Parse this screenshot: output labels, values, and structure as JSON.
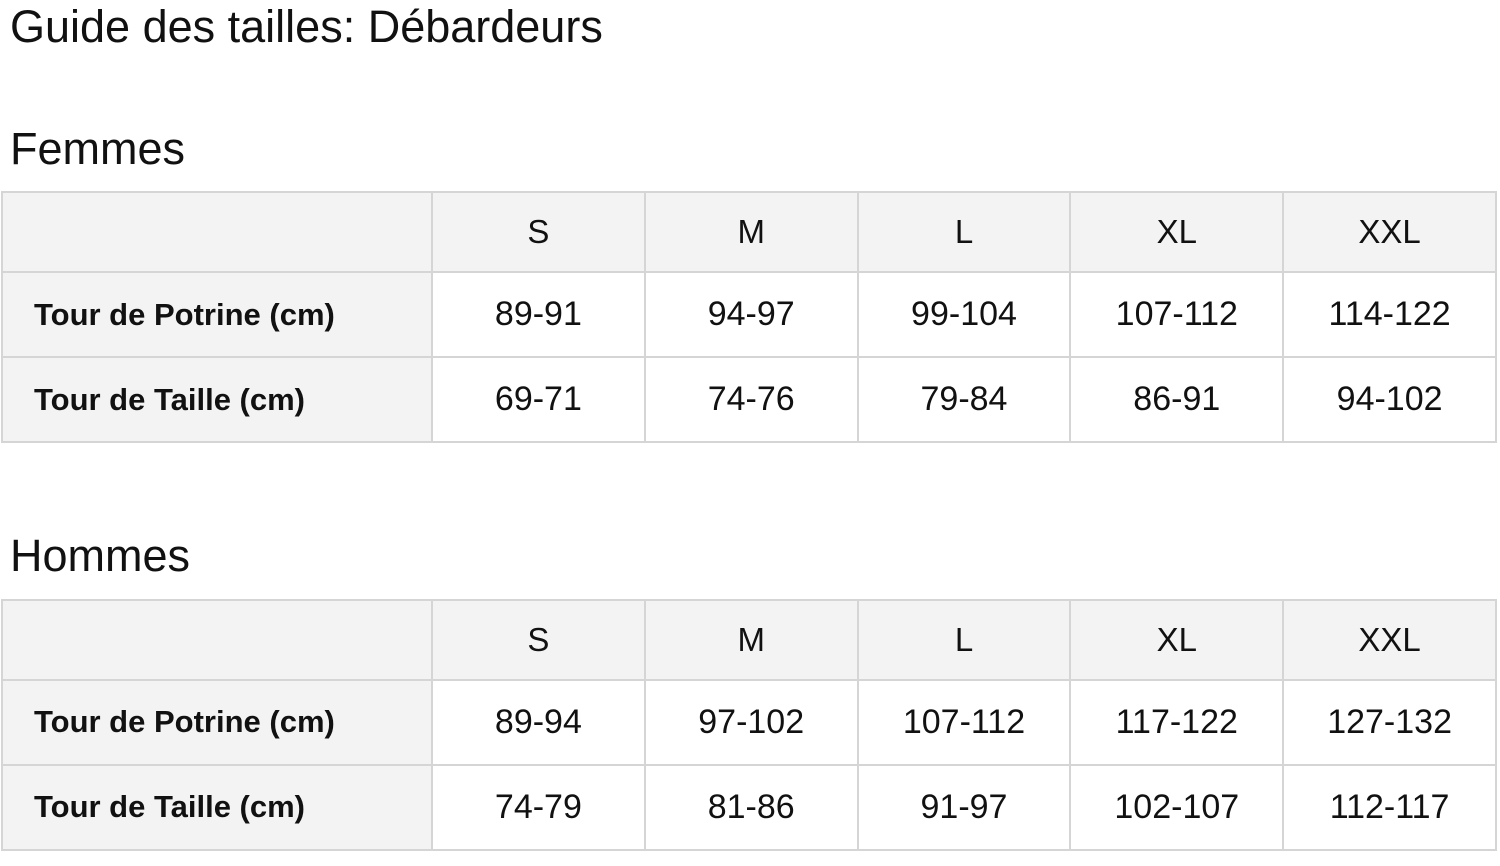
{
  "page": {
    "title": "Guide des tailles: Débardeurs"
  },
  "colors": {
    "text": "#111111",
    "header_cell_bg": "#f3f3f3",
    "data_cell_bg": "#ffffff",
    "border": "#d5d5d5"
  },
  "sections": [
    {
      "heading": "Femmes",
      "table": {
        "columns": [
          "",
          "S",
          "M",
          "L",
          "XL",
          "XXL"
        ],
        "rows": [
          {
            "label": "Tour de Potrine (cm)",
            "values": [
              "89-91",
              "94-97",
              "99-104",
              "107-112",
              "114-122"
            ]
          },
          {
            "label": "Tour de Taille (cm)",
            "values": [
              "69-71",
              "74-76",
              "79-84",
              "86-91",
              "94-102"
            ]
          }
        ]
      }
    },
    {
      "heading": "Hommes",
      "table": {
        "columns": [
          "",
          "S",
          "M",
          "L",
          "XL",
          "XXL"
        ],
        "rows": [
          {
            "label": "Tour de Potrine (cm)",
            "values": [
              "89-94",
              "97-102",
              "107-112",
              "117-122",
              "127-132"
            ]
          },
          {
            "label": "Tour de Taille (cm)",
            "values": [
              "74-79",
              "81-86",
              "91-97",
              "102-107",
              "112-117"
            ]
          }
        ]
      }
    }
  ]
}
